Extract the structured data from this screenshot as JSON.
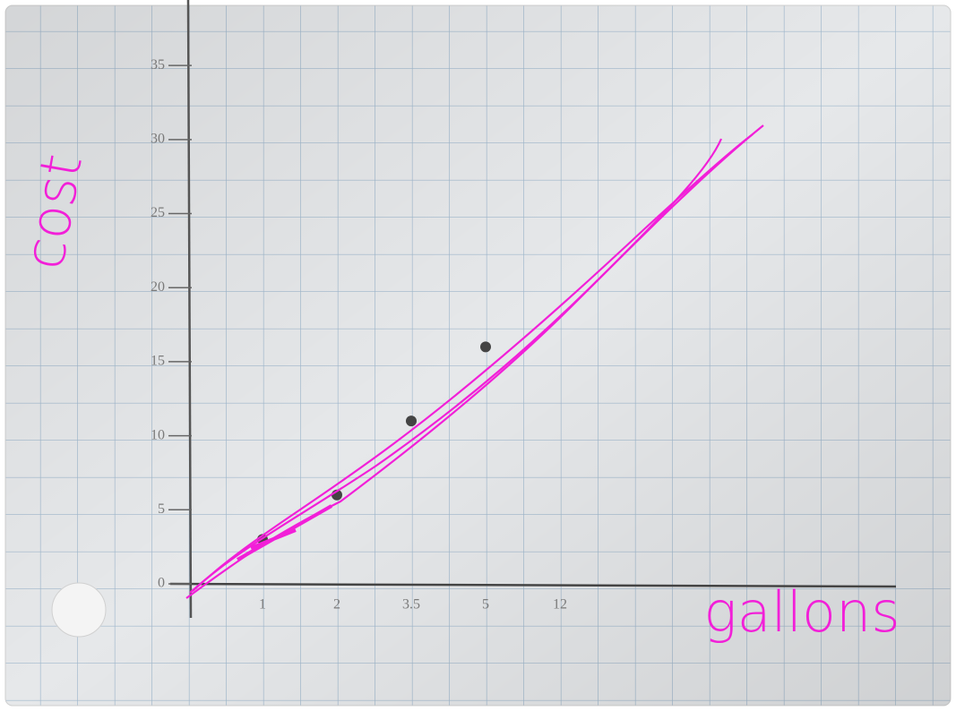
{
  "chart_data": {
    "type": "scatter",
    "y_label": "cost",
    "x_label": "gallons",
    "categories": [
      "1",
      "2",
      "3.5",
      "5",
      "12"
    ],
    "values": [
      3,
      6,
      11,
      16,
      null
    ],
    "color": "#444444",
    "ylim": [
      0,
      39
    ],
    "yticks": [
      0,
      5,
      10,
      15,
      20,
      25,
      30,
      35
    ],
    "grid": true
  }
}
